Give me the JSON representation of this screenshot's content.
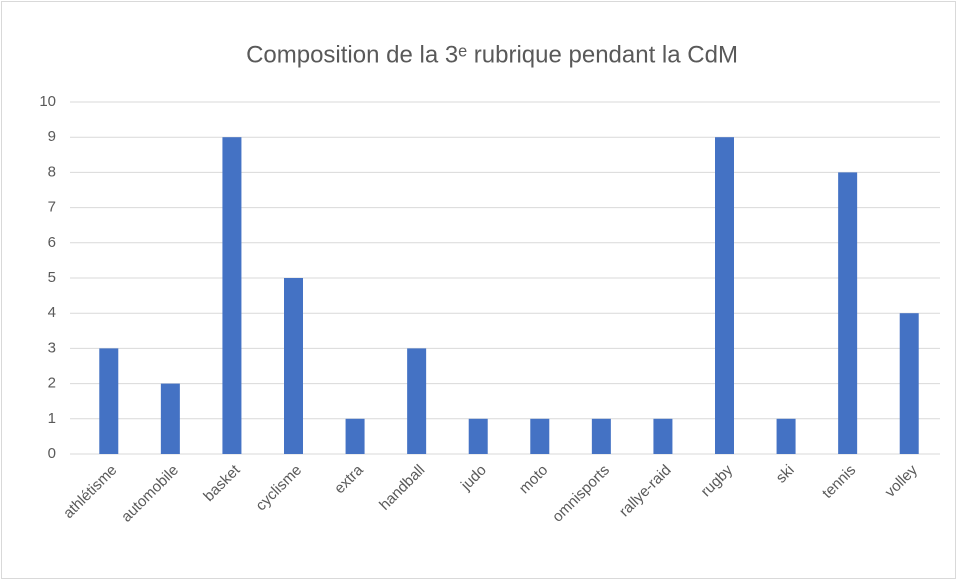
{
  "chart_data": {
    "type": "bar",
    "title": "Composition de la 3ᵉ rubrique pendant la CdM",
    "categories": [
      "athlétisme",
      "automobile",
      "basket",
      "cyclisme",
      "extra",
      "handball",
      "judo",
      "moto",
      "omnisports",
      "rallye-raid",
      "rugby",
      "ski",
      "tennis",
      "volley"
    ],
    "values": [
      3,
      2,
      9,
      5,
      1,
      3,
      1,
      1,
      1,
      1,
      9,
      1,
      8,
      4
    ],
    "color": "#4472c4",
    "ylim": [
      0,
      10
    ],
    "yticks": [
      0,
      1,
      2,
      3,
      4,
      5,
      6,
      7,
      8,
      9,
      10
    ],
    "grid": true
  }
}
